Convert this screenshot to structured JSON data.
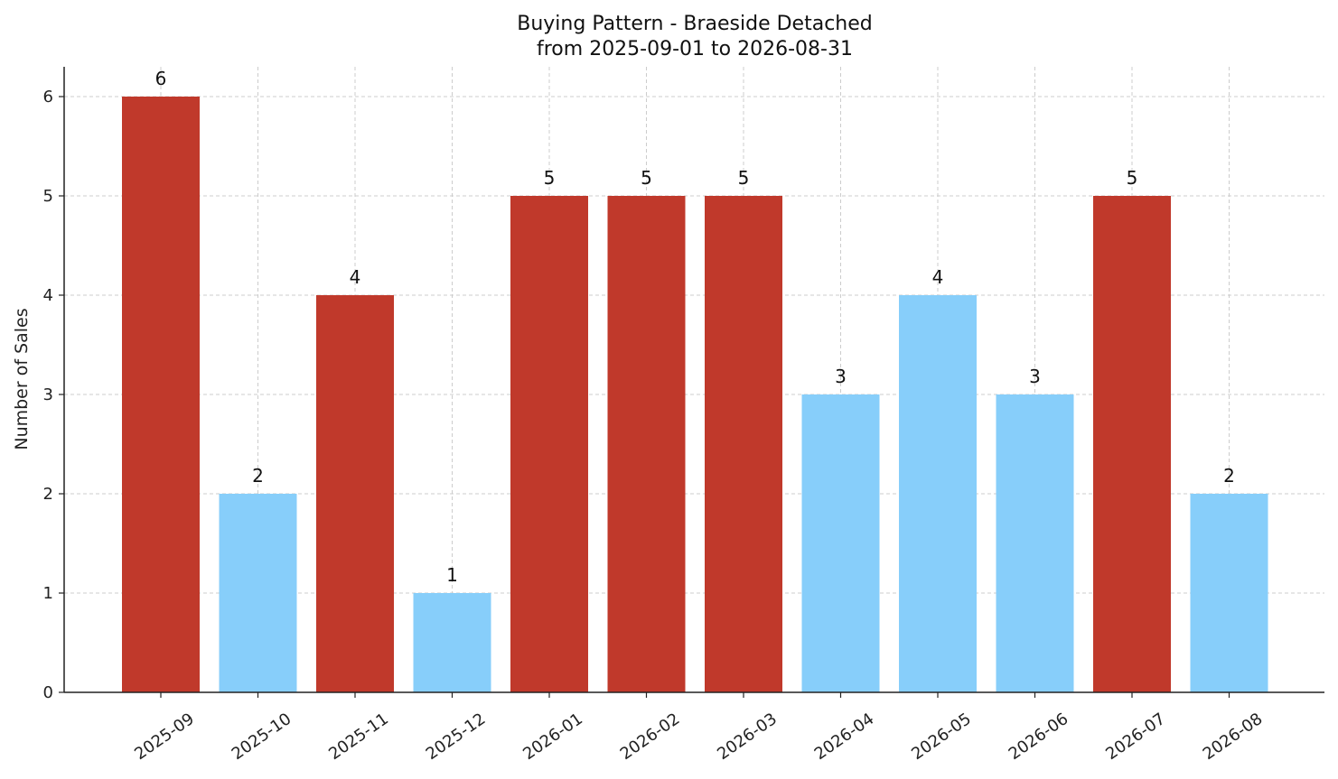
{
  "chart_data": {
    "type": "bar",
    "title": "Buying Pattern - Braeside Detached",
    "subtitle": "from 2025-09-01 to 2026-08-31",
    "xlabel": "",
    "ylabel": "Number of Sales",
    "ylim": [
      0,
      6.3
    ],
    "yticks": [
      "0",
      "1",
      "2",
      "3",
      "4",
      "5",
      "6"
    ],
    "grid": true,
    "categories": [
      "2025-09",
      "2025-10",
      "2025-11",
      "2025-12",
      "2026-01",
      "2026-02",
      "2026-03",
      "2026-04",
      "2026-05",
      "2026-06",
      "2026-07",
      "2026-08"
    ],
    "values": [
      6,
      2,
      4,
      1,
      5,
      5,
      5,
      3,
      4,
      3,
      5,
      2
    ],
    "bar_data_labels": [
      "6",
      "2",
      "4",
      "1",
      "5",
      "5",
      "5",
      "3",
      "4",
      "3",
      "5",
      "2"
    ],
    "colors": {
      "high": "#c0392b",
      "low": "#87cefa",
      "axis": "#222222",
      "grid": "#cccccc"
    },
    "bar_color_groups": [
      "high",
      "low",
      "high",
      "low",
      "high",
      "high",
      "high",
      "low",
      "low",
      "low",
      "high",
      "low"
    ]
  }
}
